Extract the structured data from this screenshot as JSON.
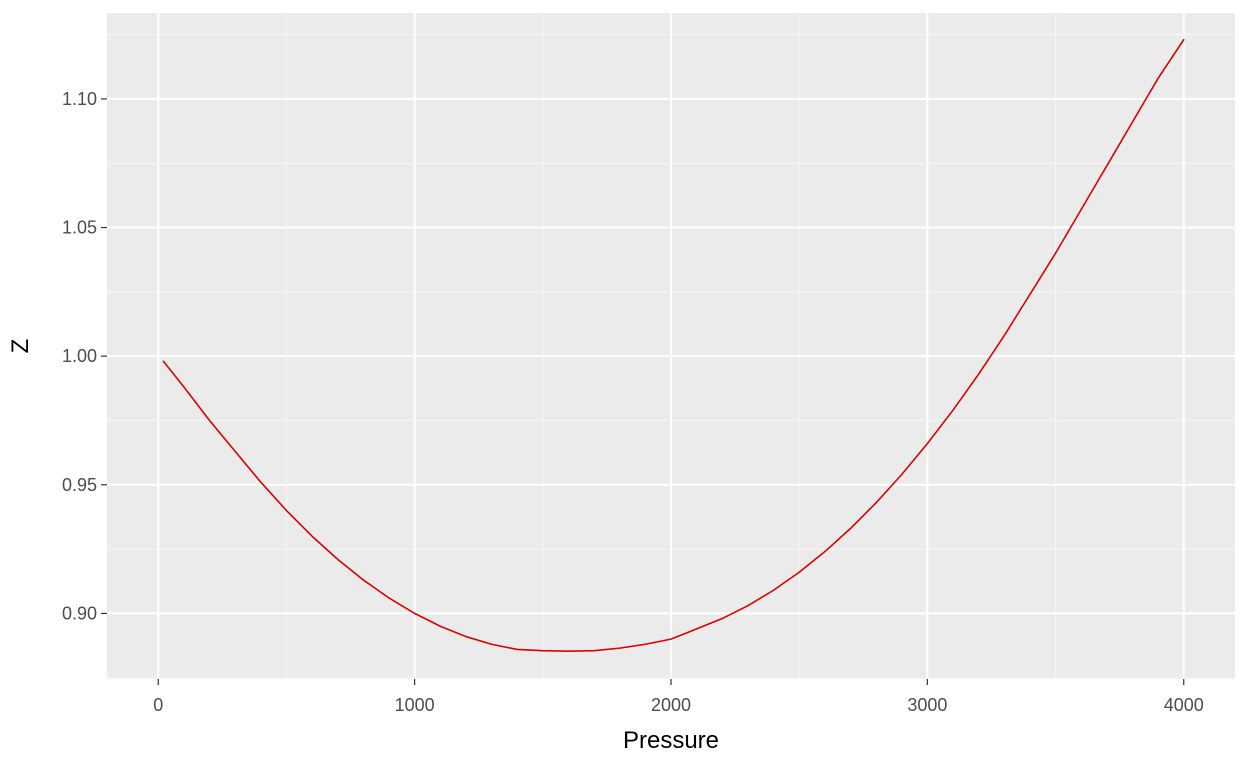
{
  "chart_data": {
    "type": "line",
    "title": "",
    "xlabel": "Pressure",
    "ylabel": "Z",
    "xlim": [
      -200,
      4200
    ],
    "ylim": [
      0.8745,
      1.1334
    ],
    "x_ticks": [
      0,
      1000,
      2000,
      3000,
      4000
    ],
    "x_tick_labels": [
      "0",
      "1000",
      "2000",
      "3000",
      "4000"
    ],
    "y_ticks": [
      0.9,
      0.95,
      1.0,
      1.05,
      1.1
    ],
    "y_tick_labels": [
      "0.90",
      "0.95",
      "1.00",
      "1.05",
      "1.10"
    ],
    "grid": true,
    "legend": "none",
    "colors": {
      "panel_background": "#ebebeb",
      "grid_major": "#ffffff",
      "grid_minor": "#f7f7f7",
      "axis_ticks": "#333333",
      "line": "#e00000"
    },
    "series": [
      {
        "x": [
          20,
          100,
          200,
          300,
          400,
          500,
          600,
          700,
          800,
          900,
          1000,
          1100,
          1200,
          1300,
          1400,
          1500,
          1600,
          1700,
          1800,
          1900,
          2000,
          2100,
          2200,
          2300,
          2400,
          2500,
          2600,
          2700,
          2800,
          2900,
          3000,
          3100,
          3200,
          3300,
          3400,
          3500,
          3600,
          3700,
          3800,
          3900,
          4000
        ],
        "y": [
          0.998,
          0.988,
          0.975,
          0.963,
          0.951,
          0.94,
          0.93,
          0.921,
          0.913,
          0.906,
          0.9,
          0.895,
          0.891,
          0.888,
          0.886,
          0.8855,
          0.8853,
          0.8855,
          0.8865,
          0.888,
          0.89,
          0.894,
          0.898,
          0.903,
          0.909,
          0.916,
          0.924,
          0.933,
          0.943,
          0.954,
          0.966,
          0.979,
          0.993,
          1.008,
          1.024,
          1.04,
          1.057,
          1.074,
          1.091,
          1.108,
          1.123
        ]
      }
    ]
  }
}
